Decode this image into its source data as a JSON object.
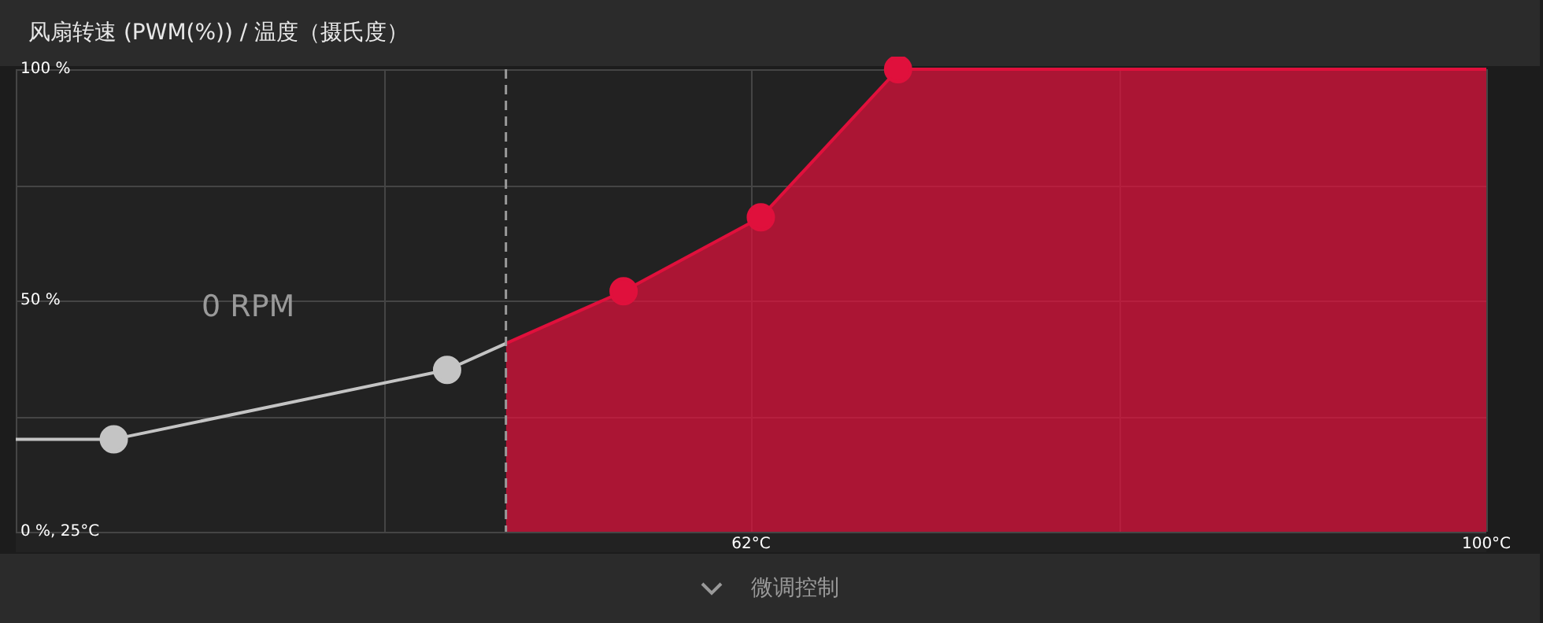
{
  "chart_data": {
    "type": "line",
    "title": "风扇转速 (PWM(%)) / 温度（摄氏度）",
    "xlim": [
      25,
      100
    ],
    "ylim": [
      0,
      100
    ],
    "xticks": [
      {
        "value": 25,
        "label": null
      },
      {
        "value": 43.75,
        "label": null
      },
      {
        "value": 62.5,
        "label": "62°C"
      },
      {
        "value": 81.25,
        "label": null
      },
      {
        "value": 100,
        "label": "100°C"
      }
    ],
    "yticks": [
      {
        "value": 0,
        "label": "0 %, 25°C"
      },
      {
        "value": 25,
        "label": null
      },
      {
        "value": 50,
        "label": "50 %"
      },
      {
        "value": 75,
        "label": null
      },
      {
        "value": 100,
        "label": "100 %"
      }
    ],
    "grid": true,
    "legend": false,
    "marker": "circle",
    "series": [
      {
        "type": "line",
        "color": "#c4c4c4",
        "x": [
          25,
          30,
          47,
          50
        ],
        "values": [
          20,
          20,
          35,
          40.7
        ]
      },
      {
        "type": "area",
        "color": "#e0103c",
        "x": [
          50,
          56,
          63,
          70,
          100
        ],
        "values": [
          40.7,
          52,
          68,
          100,
          100
        ]
      }
    ],
    "ref_lines": [
      {
        "axis": "x",
        "value": 50,
        "label": null,
        "color": "#9a9a9a",
        "line_style": "dashed"
      }
    ],
    "annotations": [
      "0 RPM",
      "微调控制"
    ]
  }
}
